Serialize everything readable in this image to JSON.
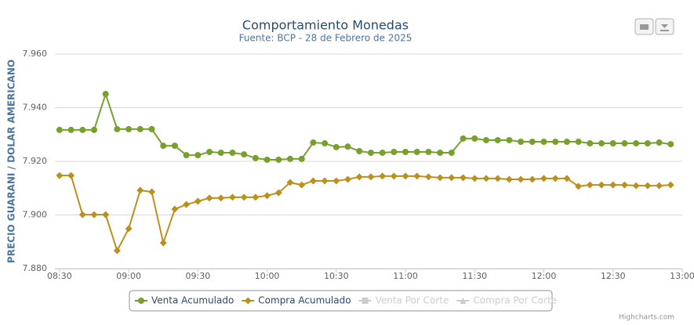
{
  "chart_data": {
    "type": "line",
    "title": "Comportamiento Monedas",
    "subtitle": "Fuente: BCP - 28 de Febrero de 2025",
    "y_label": "PRECIO GUARANI / DOLAR AMERICANO",
    "credits": "Highcharts.com",
    "x": [
      "08:30",
      "08:35",
      "08:40",
      "08:45",
      "08:50",
      "08:55",
      "09:00",
      "09:05",
      "09:10",
      "09:15",
      "09:20",
      "09:25",
      "09:30",
      "09:35",
      "09:40",
      "09:45",
      "09:50",
      "09:55",
      "10:00",
      "10:05",
      "10:10",
      "10:15",
      "10:20",
      "10:25",
      "10:30",
      "10:35",
      "10:40",
      "10:45",
      "10:50",
      "10:55",
      "11:00",
      "11:05",
      "11:10",
      "11:15",
      "11:20",
      "11:25",
      "11:30",
      "11:35",
      "11:40",
      "11:45",
      "11:50",
      "11:55",
      "12:00",
      "12:05",
      "12:10",
      "12:15",
      "12:20",
      "12:25",
      "12:30",
      "12:35",
      "12:40",
      "12:45",
      "12:50",
      "12:55"
    ],
    "xlim": [
      "08:28",
      "13:00"
    ],
    "xticks": [
      "08:30",
      "09:00",
      "09:30",
      "10:00",
      "10:30",
      "11:00",
      "11:30",
      "12:00",
      "12:30",
      "13:00"
    ],
    "ylim": [
      7880,
      7960
    ],
    "yticks": [
      {
        "value": 7880,
        "label": "7.880"
      },
      {
        "value": 7900,
        "label": "7.900"
      },
      {
        "value": 7920,
        "label": "7.920"
      },
      {
        "value": 7940,
        "label": "7.940"
      },
      {
        "value": 7960,
        "label": "7.960"
      }
    ],
    "grid": true,
    "legend": "bottom",
    "series": [
      {
        "name": "Venta Acumulado",
        "color": "#76a12c",
        "marker": "circle",
        "visible": true,
        "values": [
          7931.7,
          7931.7,
          7931.7,
          7931.7,
          7945.1,
          7932,
          7932,
          7932,
          7932,
          7925.8,
          7925.8,
          7922.3,
          7922.3,
          7923.5,
          7923.2,
          7923.2,
          7922.6,
          7921.2,
          7920.6,
          7920.6,
          7920.9,
          7920.9,
          7927,
          7926.7,
          7925.3,
          7925.5,
          7923.8,
          7923.2,
          7923.2,
          7923.5,
          7923.5,
          7923.5,
          7923.5,
          7923.2,
          7923.2,
          7928.5,
          7928.5,
          7927.9,
          7927.9,
          7927.9,
          7927.3,
          7927.3,
          7927.3,
          7927.3,
          7927.3,
          7927.3,
          7926.7,
          7926.7,
          7926.7,
          7926.7,
          7926.7,
          7926.7,
          7927,
          7926.4
        ]
      },
      {
        "name": "Compra Acumulado",
        "color": "#bb901d",
        "marker": "diamond",
        "visible": true,
        "values": [
          7914.7,
          7914.7,
          7900.1,
          7900.1,
          7900.1,
          7886.7,
          7894.9,
          7909.2,
          7908.6,
          7889.6,
          7902.2,
          7903.9,
          7905.1,
          7906.3,
          7906.3,
          7906.6,
          7906.6,
          7906.6,
          7907.2,
          7908.3,
          7912.1,
          7911.2,
          7912.7,
          7912.7,
          7912.7,
          7913.3,
          7914.2,
          7914.2,
          7914.5,
          7914.5,
          7914.5,
          7914.5,
          7914.2,
          7913.9,
          7913.9,
          7913.9,
          7913.6,
          7913.6,
          7913.6,
          7913.3,
          7913.3,
          7913.3,
          7913.6,
          7913.6,
          7913.6,
          7910.7,
          7911.2,
          7911.2,
          7911.2,
          7911.2,
          7910.9,
          7910.9,
          7910.9,
          7911.2
        ]
      },
      {
        "name": "Venta Por Corte",
        "color": "#cccccc",
        "marker": "square",
        "visible": false,
        "values": [
          null,
          null,
          null,
          null,
          null,
          null,
          null,
          null,
          null,
          null,
          null,
          null,
          null,
          null,
          null,
          null,
          null,
          null,
          null,
          null,
          null,
          null,
          null,
          null,
          null,
          null,
          null,
          null,
          null,
          null,
          null,
          null,
          null,
          null,
          null,
          null,
          null,
          null,
          null,
          null,
          null,
          null,
          null,
          null,
          null,
          null,
          null,
          null,
          null,
          null,
          null,
          null,
          null,
          null
        ]
      },
      {
        "name": "Compra Por Corte",
        "color": "#cccccc",
        "marker": "triangle",
        "visible": false,
        "values": [
          null,
          null,
          null,
          null,
          null,
          null,
          null,
          null,
          null,
          null,
          null,
          null,
          null,
          null,
          null,
          null,
          null,
          null,
          null,
          null,
          null,
          null,
          null,
          null,
          null,
          null,
          null,
          null,
          null,
          null,
          null,
          null,
          null,
          null,
          null,
          null,
          null,
          null,
          null,
          null,
          null,
          null,
          null,
          null,
          null,
          null,
          null,
          null,
          null,
          null,
          null,
          null,
          null,
          null
        ]
      }
    ]
  }
}
